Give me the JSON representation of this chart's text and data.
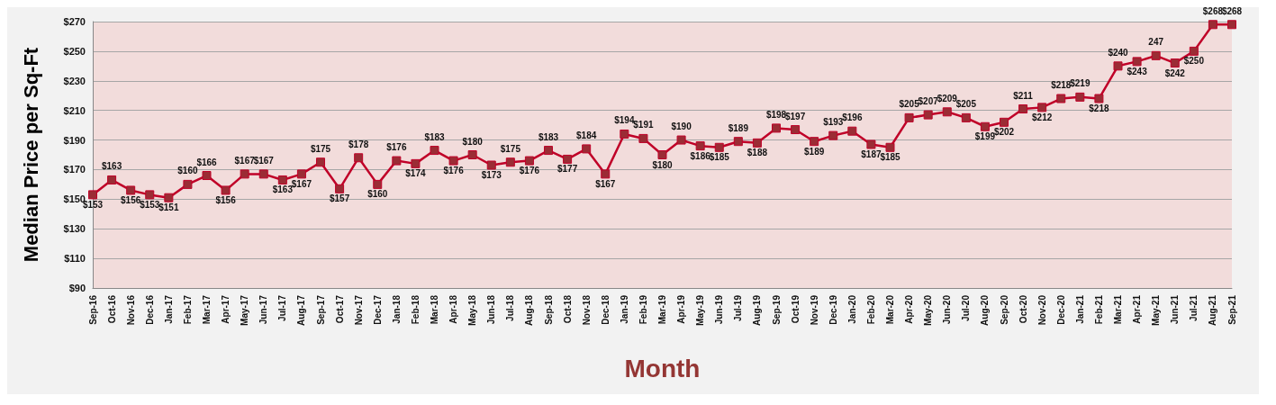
{
  "chart_data": {
    "type": "line",
    "xlabel": "Month",
    "ylabel": "Median Price per Sq-Ft",
    "categories": [
      "Sep-16",
      "Oct-16",
      "Nov-16",
      "Dec-16",
      "Jan-17",
      "Feb-17",
      "Mar-17",
      "Apr-17",
      "May-17",
      "Jun-17",
      "Jul-17",
      "Aug-17",
      "Sep-17",
      "Oct-17",
      "Nov-17",
      "Dec-17",
      "Jan-18",
      "Feb-18",
      "Mar-18",
      "Apr-18",
      "May-18",
      "Jun-18",
      "Jul-18",
      "Aug-18",
      "Sep-18",
      "Oct-18",
      "Nov-18",
      "Dec-18",
      "Jan-19",
      "Feb-19",
      "Mar-19",
      "Apr-19",
      "May-19",
      "Jun-19",
      "Jul-19",
      "Aug-19",
      "Sep-19",
      "Oct-19",
      "Nov-19",
      "Dec-19",
      "Jan-20",
      "Feb-20",
      "Mar-20",
      "Apr-20",
      "May-20",
      "Jun-20",
      "Jul-20",
      "Aug-20",
      "Sep-20",
      "Oct-20",
      "Nov-20",
      "Dec-20",
      "Jan-21",
      "Feb-21",
      "Mar-21",
      "Apr-21",
      "May-21",
      "Jun-21",
      "Jul-21",
      "Aug-21",
      "Sep-21"
    ],
    "series": [
      {
        "color": "#c00028",
        "values": [
          153,
          163,
          156,
          153,
          151,
          160,
          166,
          156,
          167,
          167,
          163,
          167,
          175,
          157,
          178,
          160,
          176,
          174,
          183,
          176,
          180,
          173,
          175,
          176,
          183,
          177,
          184,
          167,
          194,
          191,
          180,
          190,
          186,
          185,
          189,
          188,
          198,
          197,
          189,
          193,
          196,
          187,
          185,
          205,
          207,
          209,
          205,
          199,
          202,
          211,
          212,
          218,
          219,
          218,
          240,
          243,
          247,
          242,
          250,
          268,
          268
        ],
        "value_labels": [
          "$153",
          "$163",
          "$156",
          "$153",
          "$151",
          "$160",
          "$166",
          "$156",
          "$167",
          "$167",
          "$163",
          "$167",
          "$175",
          "$157",
          "$178",
          "$160",
          "$176",
          "$174",
          "$183",
          "$176",
          "$180",
          "$173",
          "$175",
          "$176",
          "$183",
          "$177",
          "$184",
          "$167",
          "$194",
          "$191",
          "$180",
          "$190",
          "$186",
          "$185",
          "$189",
          "$188",
          "$198",
          "$197",
          "$189",
          "$193",
          "$196",
          "$187",
          "$185",
          "$205",
          "$207",
          "$209",
          "$205",
          "$199",
          "$202",
          "$211",
          "$212",
          "$218",
          "$219",
          "$218",
          "$240",
          "$243",
          "247",
          "$242",
          "$250",
          "$268",
          "$268"
        ]
      }
    ],
    "ylim": [
      90,
      270
    ],
    "yticks": [
      {
        "value": 90,
        "label": "$90"
      },
      {
        "value": 110,
        "label": "$110"
      },
      {
        "value": 130,
        "label": "$130"
      },
      {
        "value": 150,
        "label": "$150"
      },
      {
        "value": 170,
        "label": "$170"
      },
      {
        "value": 190,
        "label": "$190"
      },
      {
        "value": 210,
        "label": "$210"
      },
      {
        "value": 230,
        "label": "$230"
      },
      {
        "value": 250,
        "label": "$250"
      },
      {
        "value": 270,
        "label": "$270"
      }
    ],
    "grid": "y",
    "marker": "square",
    "line_style": "solid"
  }
}
